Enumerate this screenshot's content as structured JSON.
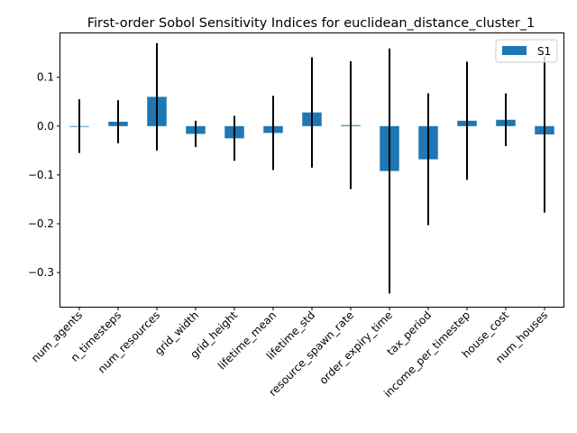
{
  "chart_data": {
    "type": "bar",
    "title": "First-order Sobol Sensitivity Indices for euclidean_distance_cluster_1",
    "xlabel": "",
    "ylabel": "",
    "categories": [
      "num_agents",
      "n_timesteps",
      "num_resources",
      "grid_width",
      "grid_height",
      "lifetime_mean",
      "lifetime_std",
      "resource_spawn_rate",
      "order_expiry_time",
      "tax_period",
      "income_per_timestep",
      "house_cost",
      "num_houses"
    ],
    "series": [
      {
        "name": "S1",
        "values": [
          0.0,
          0.009,
          0.06,
          -0.016,
          -0.025,
          -0.014,
          0.028,
          0.002,
          -0.092,
          -0.068,
          0.011,
          0.013,
          -0.017
        ],
        "errors": [
          0.055,
          0.044,
          0.11,
          0.027,
          0.046,
          0.076,
          0.113,
          0.131,
          0.251,
          0.135,
          0.121,
          0.054,
          0.16
        ]
      }
    ],
    "ylim": [
      -0.37,
      0.19
    ],
    "yticks": [
      0.1,
      0.0,
      -0.1,
      -0.2,
      -0.3
    ],
    "ytick_labels": [
      "0.1",
      "0.0",
      "−0.1",
      "−0.2",
      "−0.3"
    ],
    "grid": false,
    "legend_position": "top-right",
    "colors": {
      "bar": "#1f77b4",
      "error": "#000000",
      "axis": "#000000"
    }
  }
}
